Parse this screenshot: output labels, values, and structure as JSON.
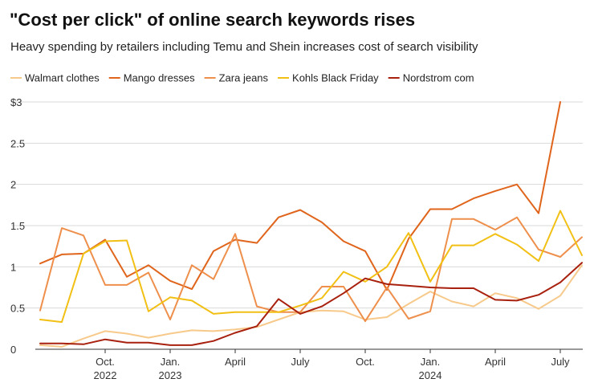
{
  "chart_data": {
    "type": "line",
    "title": "\"Cost per click\" of online search keywords rises",
    "subtitle": "Heavy spending by retailers including Temu and Shein increases cost of search visibility",
    "xlabel": "",
    "ylabel": "",
    "ylim": [
      0,
      3
    ],
    "y_ticks": [
      {
        "value": 0,
        "label": "0"
      },
      {
        "value": 0.5,
        "label": "0.5"
      },
      {
        "value": 1,
        "label": "1"
      },
      {
        "value": 1.5,
        "label": "1.5"
      },
      {
        "value": 2,
        "label": "2"
      },
      {
        "value": 2.5,
        "label": "2.5"
      },
      {
        "value": 3,
        "label": "$3"
      }
    ],
    "x_ticks": [
      {
        "index": 3,
        "line1": "Oct.",
        "line2": "2022"
      },
      {
        "index": 6,
        "line1": "Jan.",
        "line2": "2023"
      },
      {
        "index": 9,
        "line1": "April",
        "line2": ""
      },
      {
        "index": 12,
        "line1": "July",
        "line2": ""
      },
      {
        "index": 15,
        "line1": "Oct.",
        "line2": ""
      },
      {
        "index": 18,
        "line1": "Jan.",
        "line2": "2024"
      },
      {
        "index": 21,
        "line1": "April",
        "line2": ""
      },
      {
        "index": 24,
        "line1": "July",
        "line2": ""
      }
    ],
    "x": [
      "2022-07",
      "2022-08",
      "2022-09",
      "2022-10",
      "2022-11",
      "2022-12",
      "2023-01",
      "2023-02",
      "2023-03",
      "2023-04",
      "2023-05",
      "2023-06",
      "2023-07",
      "2023-08",
      "2023-09",
      "2023-10",
      "2023-11",
      "2023-12",
      "2024-01",
      "2024-02",
      "2024-03",
      "2024-04",
      "2024-05",
      "2024-06",
      "2024-07",
      "2024-08"
    ],
    "grid": true,
    "legend_position": "top",
    "series": [
      {
        "name": "Walmart clothes",
        "color": "#f7c98a",
        "values": [
          0.05,
          0.03,
          0.13,
          0.22,
          0.19,
          0.14,
          0.19,
          0.23,
          0.22,
          0.24,
          0.27,
          0.36,
          0.45,
          0.47,
          0.46,
          0.36,
          0.39,
          0.55,
          0.7,
          0.58,
          0.52,
          0.68,
          0.62,
          0.49,
          0.65,
          1.02
        ]
      },
      {
        "name": "Mango dresses",
        "color": "#e0651c",
        "values": [
          1.04,
          1.15,
          1.16,
          1.33,
          0.88,
          1.02,
          0.83,
          0.73,
          1.19,
          1.33,
          1.29,
          1.6,
          1.69,
          1.54,
          1.31,
          1.19,
          0.72,
          1.34,
          1.7,
          1.7,
          1.83,
          1.92,
          2.0,
          1.65,
          3.0,
          null
        ]
      },
      {
        "name": "Zara jeans",
        "color": "#ee8f4c",
        "values": [
          0.47,
          1.47,
          1.38,
          0.78,
          0.78,
          0.93,
          0.36,
          1.02,
          0.85,
          1.4,
          0.52,
          0.45,
          0.45,
          0.76,
          0.76,
          0.34,
          0.75,
          0.37,
          0.46,
          1.58,
          1.58,
          1.45,
          1.6,
          1.21,
          1.12,
          1.36
        ]
      },
      {
        "name": "Kohls Black Friday",
        "color": "#f2c014",
        "values": [
          0.36,
          0.33,
          1.16,
          1.31,
          1.32,
          0.46,
          0.63,
          0.59,
          0.43,
          0.45,
          0.45,
          0.45,
          0.53,
          0.62,
          0.94,
          0.82,
          1.0,
          1.41,
          0.82,
          1.26,
          1.26,
          1.4,
          1.27,
          1.07,
          1.68,
          1.14
        ]
      },
      {
        "name": "Nordstrom com",
        "color": "#a8200e",
        "values": [
          0.07,
          0.07,
          0.06,
          0.12,
          0.08,
          0.08,
          0.05,
          0.05,
          0.1,
          0.2,
          0.28,
          0.61,
          0.43,
          0.52,
          0.68,
          0.86,
          0.79,
          0.77,
          0.75,
          0.74,
          0.74,
          0.6,
          0.59,
          0.66,
          0.81,
          1.05
        ]
      }
    ]
  }
}
